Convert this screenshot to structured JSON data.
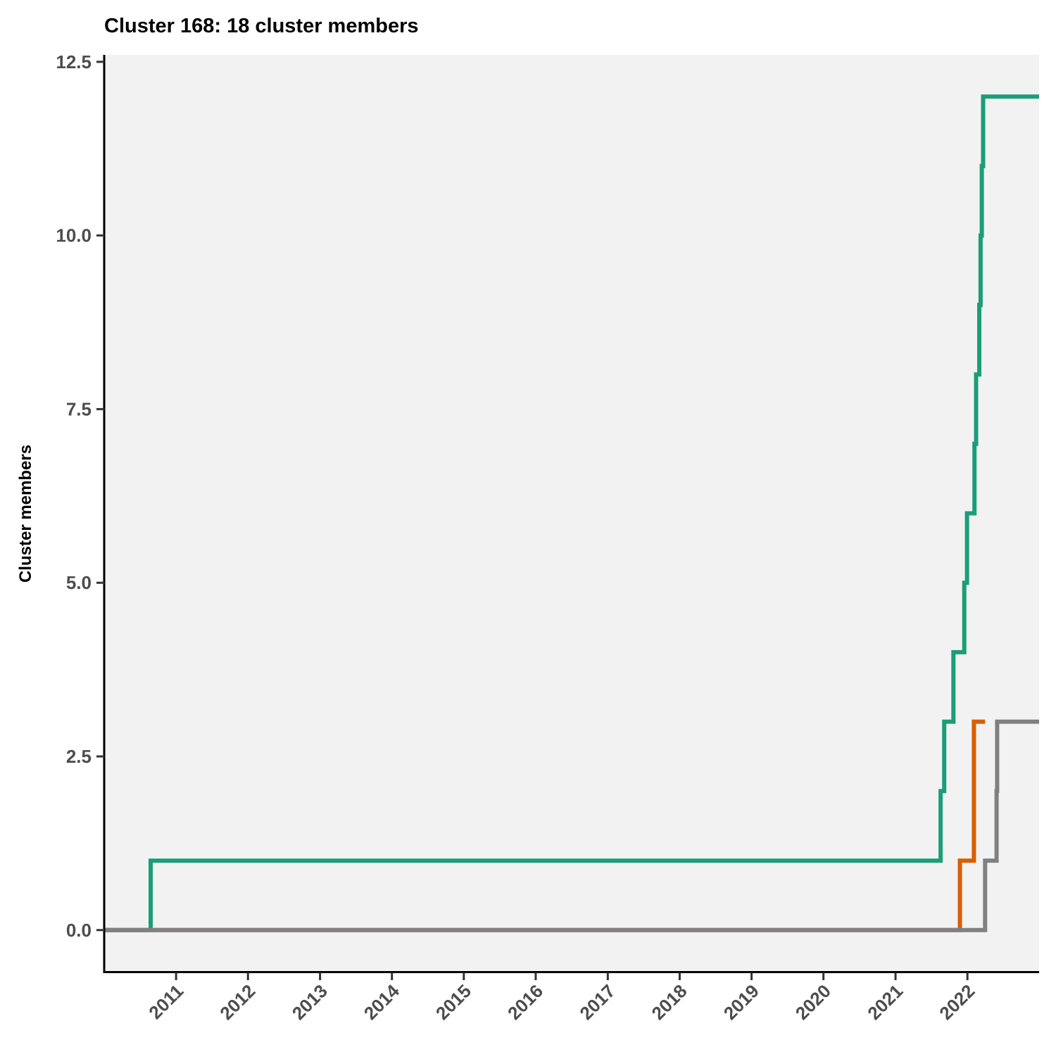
{
  "chart_data": {
    "type": "line",
    "step": true,
    "title": "Cluster 168: 18 cluster members",
    "xlabel": "",
    "ylabel": "Cluster members",
    "x_type": "date",
    "xlim": [
      "2010-01-01",
      "2022-12-31"
    ],
    "ylim": [
      -0.6,
      12.6
    ],
    "xticks": [
      "2011",
      "2012",
      "2013",
      "2014",
      "2015",
      "2016",
      "2017",
      "2018",
      "2019",
      "2020",
      "2021",
      "2022"
    ],
    "yticks": [
      "0.0",
      "2.5",
      "5.0",
      "7.5",
      "10.0",
      "12.5"
    ],
    "grid": false,
    "legend": "none",
    "panel_background": "#f2f2f2",
    "series": [
      {
        "color": "#1b9e77",
        "x": [
          "2010-01-01",
          "2010-08-25",
          "2021-08-18",
          "2021-09-05",
          "2021-10-22",
          "2021-12-16",
          "2021-12-30",
          "2022-02-06",
          "2022-02-14",
          "2022-03-02",
          "2022-03-09",
          "2022-03-15",
          "2022-03-22",
          "2022-12-31"
        ],
        "y": [
          0,
          1,
          2,
          3,
          4,
          5,
          6,
          7,
          8,
          9,
          10,
          11,
          12,
          12
        ]
      },
      {
        "color": "#d95f02",
        "x": [
          "2010-01-01",
          "2021-11-24",
          "2022-02-03",
          "2022-04-01"
        ],
        "y": [
          0,
          1,
          3,
          3
        ]
      },
      {
        "color": "#808080",
        "x": [
          "2010-01-01",
          "2022-04-01",
          "2022-05-29",
          "2022-06-01",
          "2022-12-31"
        ],
        "y": [
          0,
          1,
          2,
          3,
          3
        ]
      }
    ]
  }
}
